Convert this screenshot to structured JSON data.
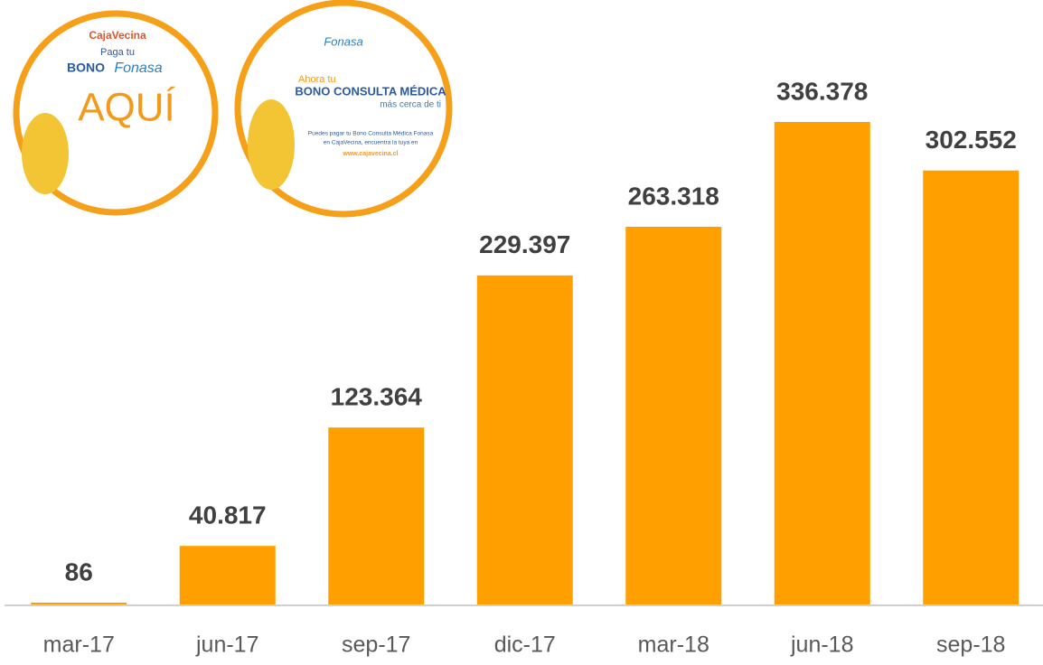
{
  "chart_data": {
    "type": "bar",
    "categories": [
      "mar-17",
      "jun-17",
      "sep-17",
      "dic-17",
      "mar-18",
      "jun-18",
      "sep-18"
    ],
    "values": [
      86,
      40817,
      123364,
      229397,
      263318,
      336378,
      302552
    ],
    "value_labels": [
      "86",
      "40.817",
      "123.364",
      "229.397",
      "263.318",
      "336.378",
      "302.552"
    ],
    "color": "#ffa000"
  },
  "stickers": [
    {
      "brand": "CajaVecina",
      "lines": [
        "Paga tu",
        "BONO",
        "Fonasa",
        "AQUÍ"
      ]
    },
    {
      "brand": "Fonasa",
      "lines": [
        "Ahora tu",
        "BONO CONSULTA MÉDICA",
        "más cerca de ti",
        "Puedes pagar tu Bono Consulta Médica Fonasa",
        "en CajaVecina, encuentra la tuya en",
        "www.cajavecina.cl"
      ]
    }
  ]
}
